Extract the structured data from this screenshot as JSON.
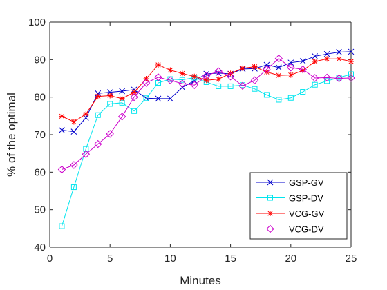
{
  "chart_data": {
    "type": "line",
    "title": "",
    "xlabel": "Minutes",
    "ylabel": "% of the optimal",
    "xlim": [
      0,
      25
    ],
    "ylim": [
      40,
      100
    ],
    "x_ticks": [
      0,
      5,
      10,
      15,
      20,
      25
    ],
    "y_ticks": [
      40,
      50,
      60,
      70,
      80,
      90,
      100
    ],
    "x_tick_labels": [
      "0",
      "5",
      "10",
      "15",
      "20",
      "25"
    ],
    "y_tick_labels": [
      "40",
      "50",
      "60",
      "70",
      "80",
      "90",
      "100"
    ],
    "grid": false,
    "legend_position": "bottom-right",
    "x": [
      1,
      2,
      3,
      4,
      5,
      6,
      7,
      8,
      9,
      10,
      11,
      12,
      13,
      14,
      15,
      16,
      17,
      18,
      19,
      20,
      21,
      22,
      23,
      24,
      25
    ],
    "series": [
      {
        "name": "GSP-GV",
        "color": "#0000cc",
        "marker": "x",
        "values": [
          71.2,
          70.8,
          74.5,
          81.0,
          81.3,
          81.6,
          82.0,
          79.7,
          79.6,
          79.6,
          82.6,
          84.4,
          86.2,
          86.4,
          86.2,
          87.5,
          87.6,
          88.6,
          87.9,
          89.2,
          89.6,
          90.9,
          91.5,
          92.0,
          92.1
        ]
      },
      {
        "name": "GSP-DV",
        "color": "#00e5ee",
        "marker": "square",
        "values": [
          45.6,
          56.0,
          66.2,
          75.2,
          78.2,
          78.5,
          76.3,
          79.7,
          83.8,
          84.8,
          84.6,
          85.2,
          84.0,
          82.9,
          82.9,
          83.2,
          82.2,
          80.6,
          79.3,
          79.8,
          81.4,
          83.3,
          84.3,
          85.2,
          86.1
        ]
      },
      {
        "name": "VCG-GV",
        "color": "#ff0000",
        "marker": "asterisk",
        "values": [
          74.9,
          73.4,
          75.5,
          80.2,
          80.4,
          79.6,
          81.3,
          84.9,
          88.6,
          87.2,
          86.3,
          85.5,
          84.5,
          84.8,
          86.3,
          87.7,
          88.1,
          86.7,
          85.8,
          85.9,
          87.1,
          89.5,
          90.2,
          90.2,
          89.5
        ]
      },
      {
        "name": "VCG-DV",
        "color": "#cc00cc",
        "marker": "diamond",
        "values": [
          60.7,
          61.9,
          64.8,
          67.5,
          70.2,
          74.8,
          80.0,
          83.8,
          85.3,
          84.5,
          83.6,
          83.2,
          85.7,
          86.9,
          85.5,
          83.0,
          84.5,
          87.4,
          90.3,
          87.9,
          87.4,
          85.1,
          85.2,
          85.0,
          85.1
        ]
      }
    ]
  }
}
